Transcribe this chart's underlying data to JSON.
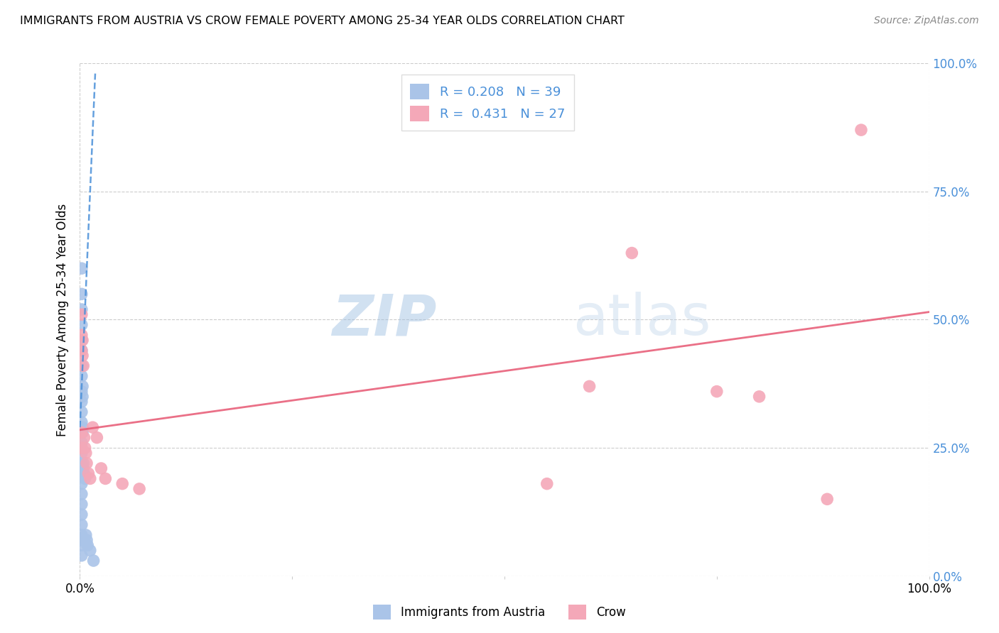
{
  "title": "IMMIGRANTS FROM AUSTRIA VS CROW FEMALE POVERTY AMONG 25-34 YEAR OLDS CORRELATION CHART",
  "source": "Source: ZipAtlas.com",
  "ylabel": "Female Poverty Among 25-34 Year Olds",
  "xlim": [
    0,
    1
  ],
  "ylim": [
    0,
    1
  ],
  "ytick_vals": [
    0.0,
    0.25,
    0.5,
    0.75,
    1.0
  ],
  "blue_R": "0.208",
  "blue_N": "39",
  "pink_R": "0.431",
  "pink_N": "27",
  "blue_color": "#aac4e8",
  "pink_color": "#f4a8b8",
  "blue_line_color": "#4a90d9",
  "pink_line_color": "#e8607a",
  "legend_label_blue": "Immigrants from Austria",
  "legend_label_pink": "Crow",
  "watermark_zip": "ZIP",
  "watermark_atlas": "atlas",
  "blue_scatter_x": [
    0.002,
    0.002,
    0.002,
    0.002,
    0.002,
    0.002,
    0.002,
    0.002,
    0.002,
    0.002,
    0.002,
    0.002,
    0.002,
    0.002,
    0.002,
    0.002,
    0.002,
    0.002,
    0.002,
    0.002,
    0.002,
    0.002,
    0.002,
    0.002,
    0.002,
    0.002,
    0.003,
    0.003,
    0.003,
    0.003,
    0.004,
    0.004,
    0.005,
    0.006,
    0.007,
    0.008,
    0.009,
    0.012,
    0.016
  ],
  "blue_scatter_y": [
    0.6,
    0.55,
    0.52,
    0.49,
    0.46,
    0.44,
    0.41,
    0.39,
    0.36,
    0.34,
    0.32,
    0.3,
    0.28,
    0.26,
    0.24,
    0.22,
    0.2,
    0.18,
    0.16,
    0.14,
    0.12,
    0.1,
    0.08,
    0.07,
    0.06,
    0.04,
    0.37,
    0.35,
    0.29,
    0.28,
    0.22,
    0.21,
    0.2,
    0.19,
    0.08,
    0.07,
    0.06,
    0.05,
    0.03
  ],
  "pink_scatter_x": [
    0.002,
    0.002,
    0.002,
    0.002,
    0.002,
    0.003,
    0.003,
    0.004,
    0.005,
    0.006,
    0.007,
    0.008,
    0.01,
    0.012,
    0.015,
    0.02,
    0.025,
    0.03,
    0.05,
    0.07,
    0.55,
    0.6,
    0.65,
    0.75,
    0.8,
    0.88,
    0.92
  ],
  "pink_scatter_y": [
    0.51,
    0.47,
    0.44,
    0.28,
    0.25,
    0.46,
    0.43,
    0.41,
    0.27,
    0.25,
    0.24,
    0.22,
    0.2,
    0.19,
    0.29,
    0.27,
    0.21,
    0.19,
    0.18,
    0.17,
    0.18,
    0.37,
    0.63,
    0.36,
    0.35,
    0.15,
    0.87
  ],
  "blue_trend_x0": 0.0,
  "blue_trend_x1": 0.018,
  "blue_trend_y0": 0.29,
  "blue_trend_y1": 0.98,
  "pink_trend_x0": 0.0,
  "pink_trend_x1": 1.0,
  "pink_trend_y0": 0.285,
  "pink_trend_y1": 0.515
}
